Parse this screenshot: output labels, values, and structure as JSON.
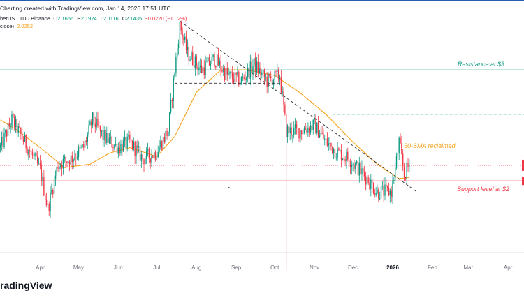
{
  "caption": "Charting created with TradingView.com, Jan 14, 2026 17:51 UTC",
  "legend": {
    "symbol": "herUS · 1D · Binance",
    "open_label": "O",
    "open": "2.1656",
    "high_label": "H",
    "high": "2.1924",
    "low_label": "L",
    "low": "2.1116",
    "close_label": "C",
    "close": "2.1435",
    "change": "−0.0220 (−1.02%)",
    "sma_label": "close)",
    "sma_value": "2.0252"
  },
  "footer_logo": "radingView",
  "colors": {
    "up": "#089981",
    "down": "#f23645",
    "sma": "#f7a21b",
    "resistance": "#089981",
    "support": "#f23645",
    "trendline": "#2a2e39"
  },
  "chart_data": {
    "type": "candlestick",
    "x_labels": [
      "Apr",
      "May",
      "Jun",
      "Jul",
      "Aug",
      "Sep",
      "Oct",
      "Nov",
      "Dec",
      "2026",
      "Feb",
      "Mar",
      "Apr"
    ],
    "y_range": [
      1.0,
      3.6
    ],
    "annotations": {
      "resistance": "Resistance at $3",
      "support": "Support level at $2",
      "sma_note": "50-SMA reclaimed"
    },
    "levels": {
      "resistance": 3.0,
      "support": 2.0,
      "dashed_green": 2.6
    },
    "anchors": [
      [
        "2025-03-01",
        2.3
      ],
      [
        "2025-03-10",
        2.55
      ],
      [
        "2025-03-20",
        2.35
      ],
      [
        "2025-04-01",
        2.1
      ],
      [
        "2025-04-07",
        1.75
      ],
      [
        "2025-04-15",
        2.15
      ],
      [
        "2025-04-25",
        2.2
      ],
      [
        "2025-05-05",
        2.3
      ],
      [
        "2025-05-12",
        2.55
      ],
      [
        "2025-05-20",
        2.4
      ],
      [
        "2025-06-01",
        2.3
      ],
      [
        "2025-06-10",
        2.35
      ],
      [
        "2025-06-20",
        2.2
      ],
      [
        "2025-06-30",
        2.25
      ],
      [
        "2025-07-10",
        2.45
      ],
      [
        "2025-07-15",
        3.0
      ],
      [
        "2025-07-19",
        3.4
      ],
      [
        "2025-07-25",
        3.15
      ],
      [
        "2025-08-05",
        3.0
      ],
      [
        "2025-08-15",
        3.1
      ],
      [
        "2025-08-25",
        2.95
      ],
      [
        "2025-09-05",
        2.9
      ],
      [
        "2025-09-15",
        3.05
      ],
      [
        "2025-09-25",
        2.9
      ],
      [
        "2025-10-05",
        2.95
      ],
      [
        "2025-10-10",
        2.45
      ],
      [
        "2025-10-20",
        2.45
      ],
      [
        "2025-11-01",
        2.5
      ],
      [
        "2025-11-10",
        2.35
      ],
      [
        "2025-11-20",
        2.25
      ],
      [
        "2025-11-28",
        2.2
      ],
      [
        "2025-12-10",
        2.05
      ],
      [
        "2025-12-20",
        1.9
      ],
      [
        "2025-12-31",
        1.9
      ],
      [
        "2026-01-03",
        2.1
      ],
      [
        "2026-01-06",
        2.35
      ],
      [
        "2026-01-10",
        2.05
      ],
      [
        "2026-01-14",
        2.14
      ]
    ],
    "sma_anchors": [
      [
        "2025-03-01",
        2.55
      ],
      [
        "2025-03-15",
        2.45
      ],
      [
        "2025-04-01",
        2.3
      ],
      [
        "2025-04-20",
        2.12
      ],
      [
        "2025-05-10",
        2.15
      ],
      [
        "2025-05-25",
        2.25
      ],
      [
        "2025-06-10",
        2.3
      ],
      [
        "2025-07-01",
        2.22
      ],
      [
        "2025-07-15",
        2.4
      ],
      [
        "2025-08-01",
        2.8
      ],
      [
        "2025-08-20",
        3.0
      ],
      [
        "2025-09-10",
        3.0
      ],
      [
        "2025-10-01",
        2.95
      ],
      [
        "2025-10-20",
        2.8
      ],
      [
        "2025-11-10",
        2.6
      ],
      [
        "2025-12-01",
        2.35
      ],
      [
        "2025-12-20",
        2.15
      ],
      [
        "2026-01-06",
        2.02
      ],
      [
        "2026-01-14",
        2.03
      ]
    ],
    "trendline": [
      [
        "2025-07-19",
        3.44
      ],
      [
        "2026-01-20",
        1.9
      ]
    ],
    "dashed_black": [
      [
        "2025-07-15",
        2.88
      ],
      [
        "2025-10-05",
        2.88
      ]
    ],
    "spikes": [
      {
        "date": "2025-04-07",
        "low": 1.63
      },
      {
        "date": "2025-10-10",
        "low": 1.2
      }
    ]
  }
}
